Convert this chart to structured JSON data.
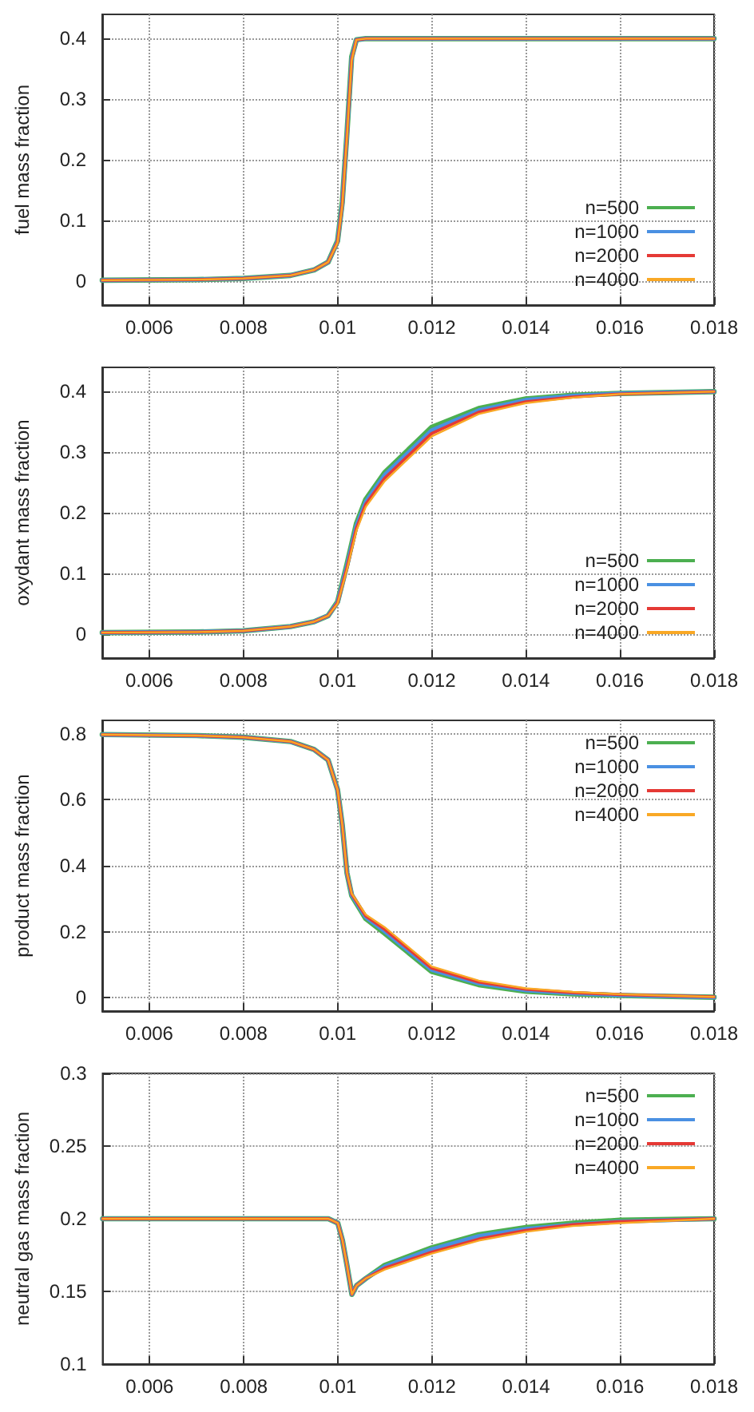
{
  "chart_data": [
    {
      "type": "line",
      "ylabel": "fuel mass fraction",
      "marker": "none",
      "grid": true,
      "legend": "bottom right",
      "x": [
        0.005,
        0.007,
        0.008,
        0.009,
        0.0095,
        0.0098,
        0.01,
        0.0101,
        0.0102,
        0.0103,
        0.0104,
        0.0106,
        0.012,
        0.014,
        0.016,
        0.018
      ],
      "xlim": [
        0.005,
        0.018
      ],
      "xticks": [
        0.006,
        0.008,
        0.01,
        0.012,
        0.014,
        0.016,
        0.018
      ],
      "ylim": [
        -0.04,
        0.44
      ],
      "yticks": [
        0,
        0.1,
        0.2,
        0.3,
        0.4
      ],
      "series": [
        {
          "name": "n=500",
          "color": "#4caf50",
          "values": [
            0.001,
            0.002,
            0.004,
            0.009,
            0.018,
            0.031,
            0.066,
            0.13,
            0.244,
            0.37,
            0.398,
            0.4,
            0.4,
            0.4,
            0.4,
            0.4
          ]
        },
        {
          "name": "n=1000",
          "color": "#4a90e2",
          "values": [
            0.001,
            0.002,
            0.004,
            0.009,
            0.018,
            0.031,
            0.065,
            0.128,
            0.242,
            0.368,
            0.398,
            0.4,
            0.4,
            0.4,
            0.4,
            0.4
          ]
        },
        {
          "name": "n=2000",
          "color": "#e53935",
          "values": [
            0.001,
            0.002,
            0.004,
            0.009,
            0.018,
            0.031,
            0.064,
            0.126,
            0.24,
            0.366,
            0.398,
            0.4,
            0.4,
            0.4,
            0.4,
            0.4
          ]
        },
        {
          "name": "n=4000",
          "color": "#f9a825",
          "values": [
            0.001,
            0.002,
            0.004,
            0.009,
            0.018,
            0.031,
            0.063,
            0.124,
            0.238,
            0.364,
            0.398,
            0.4,
            0.4,
            0.4,
            0.4,
            0.4
          ]
        }
      ]
    },
    {
      "type": "line",
      "ylabel": "oxydant mass fraction",
      "marker": "none",
      "grid": true,
      "legend": "bottom right",
      "x": [
        0.005,
        0.007,
        0.008,
        0.009,
        0.0095,
        0.0098,
        0.01,
        0.0102,
        0.0104,
        0.0106,
        0.011,
        0.012,
        0.013,
        0.014,
        0.015,
        0.016,
        0.018
      ],
      "xlim": [
        0.005,
        0.018
      ],
      "xticks": [
        0.006,
        0.008,
        0.01,
        0.012,
        0.014,
        0.016,
        0.018
      ],
      "ylim": [
        -0.04,
        0.44
      ],
      "yticks": [
        0,
        0.1,
        0.2,
        0.3,
        0.4
      ],
      "series": [
        {
          "name": "n=500",
          "color": "#4caf50",
          "values": [
            0.002,
            0.003,
            0.005,
            0.012,
            0.02,
            0.03,
            0.053,
            0.115,
            0.182,
            0.222,
            0.266,
            0.341,
            0.372,
            0.388,
            0.394,
            0.397,
            0.4
          ]
        },
        {
          "name": "n=1000",
          "color": "#4a90e2",
          "values": [
            0.002,
            0.003,
            0.005,
            0.012,
            0.02,
            0.03,
            0.052,
            0.112,
            0.178,
            0.218,
            0.262,
            0.336,
            0.369,
            0.386,
            0.393,
            0.397,
            0.4
          ]
        },
        {
          "name": "n=2000",
          "color": "#e53935",
          "values": [
            0.002,
            0.003,
            0.005,
            0.012,
            0.02,
            0.03,
            0.051,
            0.109,
            0.174,
            0.214,
            0.257,
            0.331,
            0.366,
            0.383,
            0.391,
            0.396,
            0.4
          ]
        },
        {
          "name": "n=4000",
          "color": "#f9a825",
          "values": [
            0.002,
            0.003,
            0.005,
            0.012,
            0.02,
            0.03,
            0.05,
            0.106,
            0.17,
            0.21,
            0.252,
            0.326,
            0.363,
            0.381,
            0.39,
            0.396,
            0.4
          ]
        }
      ]
    },
    {
      "type": "line",
      "ylabel": "product mass fraction",
      "marker": "none",
      "grid": true,
      "legend": "top right",
      "x": [
        0.005,
        0.007,
        0.008,
        0.009,
        0.0095,
        0.0098,
        0.01,
        0.0101,
        0.0102,
        0.0103,
        0.0106,
        0.011,
        0.012,
        0.013,
        0.014,
        0.015,
        0.016,
        0.018
      ],
      "xlim": [
        0.005,
        0.018
      ],
      "xticks": [
        0.006,
        0.008,
        0.01,
        0.012,
        0.014,
        0.016,
        0.018
      ],
      "ylim": [
        -0.04,
        0.84
      ],
      "yticks": [
        0,
        0.2,
        0.4,
        0.6,
        0.8
      ],
      "series": [
        {
          "name": "n=500",
          "color": "#4caf50",
          "values": [
            0.797,
            0.794,
            0.789,
            0.776,
            0.752,
            0.72,
            0.63,
            0.524,
            0.378,
            0.31,
            0.24,
            0.196,
            0.08,
            0.04,
            0.02,
            0.012,
            0.007,
            0.002
          ]
        },
        {
          "name": "n=1000",
          "color": "#4a90e2",
          "values": [
            0.797,
            0.794,
            0.789,
            0.776,
            0.752,
            0.72,
            0.63,
            0.524,
            0.378,
            0.312,
            0.244,
            0.202,
            0.085,
            0.044,
            0.023,
            0.014,
            0.008,
            0.002
          ]
        },
        {
          "name": "n=2000",
          "color": "#e53935",
          "values": [
            0.797,
            0.794,
            0.789,
            0.776,
            0.752,
            0.72,
            0.63,
            0.524,
            0.378,
            0.314,
            0.248,
            0.208,
            0.09,
            0.048,
            0.026,
            0.016,
            0.01,
            0.003
          ]
        },
        {
          "name": "n=4000",
          "color": "#f9a825",
          "values": [
            0.797,
            0.794,
            0.789,
            0.776,
            0.752,
            0.72,
            0.63,
            0.524,
            0.378,
            0.316,
            0.252,
            0.214,
            0.095,
            0.052,
            0.029,
            0.018,
            0.011,
            0.003
          ]
        }
      ]
    },
    {
      "type": "line",
      "ylabel": "neutral gas mass fraction",
      "marker": "none",
      "grid": true,
      "legend": "top right",
      "x": [
        0.005,
        0.007,
        0.009,
        0.0095,
        0.0098,
        0.01,
        0.0101,
        0.0102,
        0.0103,
        0.0104,
        0.0106,
        0.011,
        0.012,
        0.013,
        0.014,
        0.015,
        0.016,
        0.018
      ],
      "xlim": [
        0.005,
        0.018
      ],
      "xticks": [
        0.006,
        0.008,
        0.01,
        0.012,
        0.014,
        0.016,
        0.018
      ],
      "ylim": [
        0.1,
        0.3
      ],
      "yticks": [
        0.1,
        0.15,
        0.2,
        0.25,
        0.3
      ],
      "series": [
        {
          "name": "n=500",
          "color": "#4caf50",
          "values": [
            0.2,
            0.2,
            0.2,
            0.2,
            0.2,
            0.197,
            0.185,
            0.167,
            0.148,
            0.154,
            0.159,
            0.168,
            0.18,
            0.189,
            0.194,
            0.197,
            0.199,
            0.2
          ]
        },
        {
          "name": "n=1000",
          "color": "#4a90e2",
          "values": [
            0.2,
            0.2,
            0.2,
            0.2,
            0.2,
            0.197,
            0.185,
            0.167,
            0.148,
            0.154,
            0.159,
            0.167,
            0.179,
            0.188,
            0.193,
            0.196,
            0.198,
            0.2
          ]
        },
        {
          "name": "n=2000",
          "color": "#e53935",
          "values": [
            0.2,
            0.2,
            0.2,
            0.2,
            0.2,
            0.197,
            0.185,
            0.167,
            0.148,
            0.154,
            0.159,
            0.166,
            0.177,
            0.186,
            0.192,
            0.196,
            0.198,
            0.2
          ]
        },
        {
          "name": "n=4000",
          "color": "#f9a825",
          "values": [
            0.2,
            0.2,
            0.2,
            0.2,
            0.2,
            0.197,
            0.185,
            0.167,
            0.148,
            0.154,
            0.159,
            0.165,
            0.176,
            0.185,
            0.191,
            0.195,
            0.197,
            0.2
          ]
        }
      ]
    }
  ]
}
